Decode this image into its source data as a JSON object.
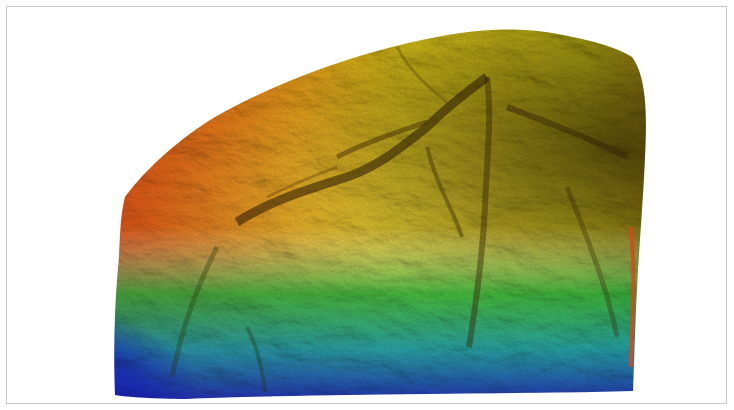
{
  "map": {
    "kind": "elevation-hillshade",
    "background": "#ffffff",
    "border_color": "#c9c9c9",
    "color_ramp": [
      "#1a22c8",
      "#0aa6c8",
      "#17c24a",
      "#8fd11a",
      "#e6dc1a",
      "#f5b21a",
      "#f07a1a",
      "#e33217"
    ],
    "ramp_low_to_high": [
      "blue",
      "cyan",
      "green",
      "yellow-green",
      "yellow",
      "orange",
      "red"
    ]
  }
}
